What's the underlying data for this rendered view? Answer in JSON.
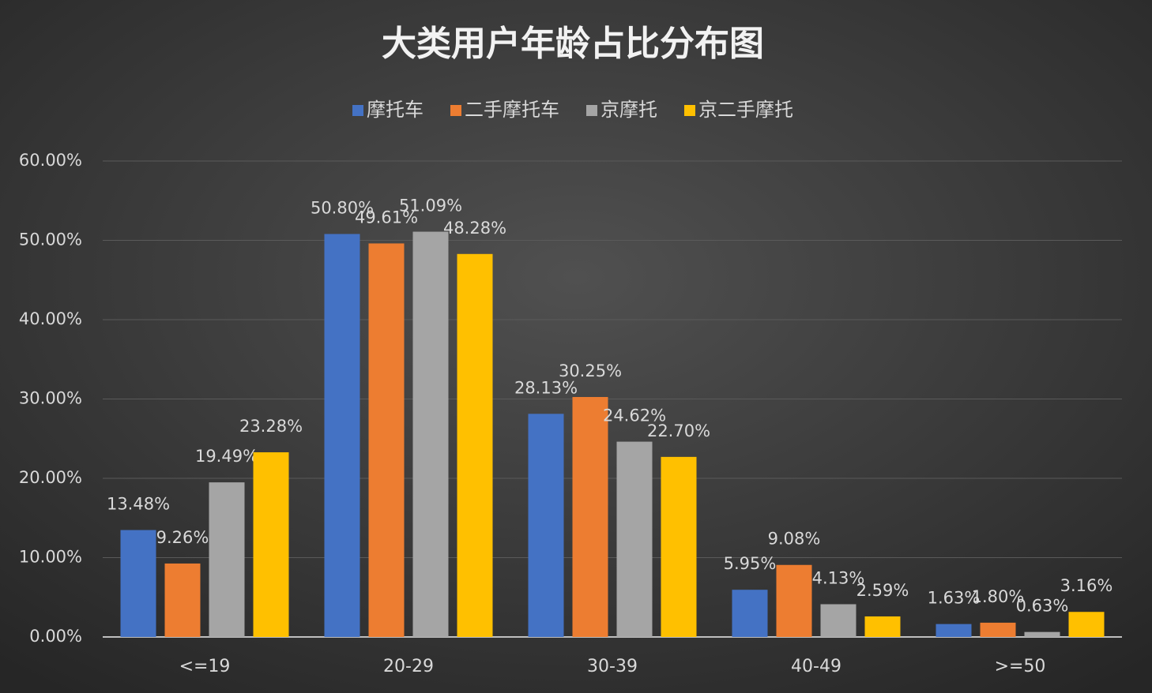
{
  "chart_data": {
    "type": "bar",
    "title": "大类用户年龄占比分布图",
    "categories": [
      "<=19",
      "20-29",
      "30-39",
      "40-49",
      ">=50"
    ],
    "series": [
      {
        "name": "摩托车",
        "color": "#4472c4",
        "values": [
          13.48,
          50.8,
          28.13,
          5.95,
          1.63
        ],
        "value_labels": [
          "13.48%",
          "50.80%",
          "28.13%",
          "5.95%",
          "1.63%"
        ]
      },
      {
        "name": "二手摩托车",
        "color": "#ed7d31",
        "values": [
          9.26,
          49.61,
          30.25,
          9.08,
          1.8
        ],
        "value_labels": [
          "9.26%",
          "49.61%",
          "30.25%",
          "9.08%",
          "1.80%"
        ]
      },
      {
        "name": "京摩托",
        "color": "#a5a5a5",
        "values": [
          19.49,
          51.09,
          24.62,
          4.13,
          0.63
        ],
        "value_labels": [
          "19.49%",
          "51.09%",
          "24.62%",
          "4.13%",
          "0.63%"
        ]
      },
      {
        "name": "京二手摩托",
        "color": "#ffc000",
        "values": [
          23.28,
          48.28,
          22.7,
          2.59,
          3.16
        ],
        "value_labels": [
          "23.28%",
          "48.28%",
          "22.70%",
          "2.59%",
          "3.16%"
        ]
      }
    ],
    "ylim": [
      0,
      60
    ],
    "yticks": [
      {
        "value": 0,
        "label": "0.00%"
      },
      {
        "value": 10,
        "label": "10.00%"
      },
      {
        "value": 20,
        "label": "20.00%"
      },
      {
        "value": 30,
        "label": "30.00%"
      },
      {
        "value": 40,
        "label": "40.00%"
      },
      {
        "value": 50,
        "label": "50.00%"
      },
      {
        "value": 60,
        "label": "60.00%"
      }
    ],
    "grid": true,
    "legend": "top"
  }
}
